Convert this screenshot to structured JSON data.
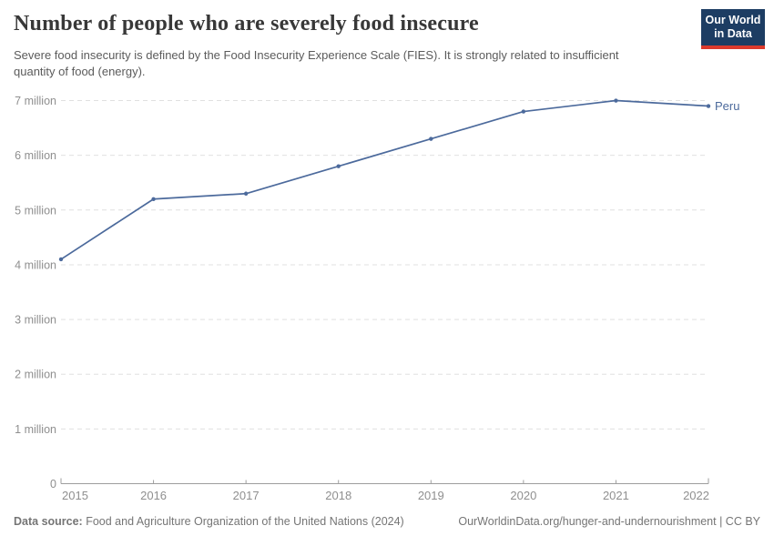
{
  "header": {
    "title": "Number of people who are severely food insecure",
    "subtitle": "Severe food insecurity is defined by the Food Insecurity Experience Scale (FIES). It is strongly related to insufficient quantity of food (energy)."
  },
  "logo": {
    "line1": "Our World",
    "line2": "in Data",
    "bg_color": "#1d3d63",
    "stripe_color": "#dc3a2c"
  },
  "chart_data": {
    "type": "line",
    "title": "Number of people who are severely food insecure",
    "x": [
      2015,
      2016,
      2017,
      2018,
      2019,
      2020,
      2021,
      2022
    ],
    "x_tick_labels": [
      "2015",
      "2016",
      "2017",
      "2018",
      "2019",
      "2020",
      "2021",
      "2022"
    ],
    "series": [
      {
        "name": "Peru",
        "color": "#4c6a9c",
        "values_millions": [
          4.1,
          5.2,
          5.3,
          5.8,
          6.3,
          6.8,
          7.0,
          6.9
        ]
      }
    ],
    "unit": "million people",
    "y_ticks": [
      {
        "value": 0,
        "label": "0"
      },
      {
        "value": 1,
        "label": "1 million"
      },
      {
        "value": 2,
        "label": "2 million"
      },
      {
        "value": 3,
        "label": "3 million"
      },
      {
        "value": 4,
        "label": "4 million"
      },
      {
        "value": 5,
        "label": "5 million"
      },
      {
        "value": 6,
        "label": "6 million"
      },
      {
        "value": 7,
        "label": "7 million"
      }
    ],
    "ylim": [
      0,
      7.3
    ],
    "grid": "dashed horizontal",
    "legend_position": "end-of-line label",
    "colors": {
      "grid": "#e0e0e0",
      "axis": "#9e9e9e",
      "tick_text": "#8f8f8f"
    }
  },
  "footer": {
    "source_label": "Data source:",
    "source_text": " Food and Agriculture Organization of the United Nations (2024)",
    "link_text": "OurWorldinData.org/hunger-and-undernourishment | CC BY"
  }
}
